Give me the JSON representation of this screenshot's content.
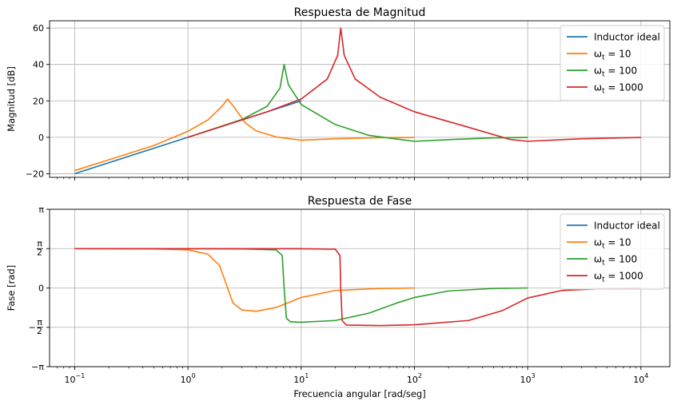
{
  "chart_data": [
    {
      "type": "line",
      "title": "Respuesta de Magnitud",
      "xlabel": "",
      "ylabel": "Magnitud [dB]",
      "xscale": "log",
      "xlim": [
        0.06,
        18000
      ],
      "ylim": [
        -22,
        64
      ],
      "x_ticks": [
        0.1,
        1,
        10,
        100,
        1000,
        10000
      ],
      "y_ticks": [
        -20,
        0,
        20,
        40,
        60
      ],
      "y_tick_labels": [
        "−20",
        "0",
        "20",
        "40",
        "60"
      ],
      "grid": true,
      "legend": "top-right",
      "series": [
        {
          "name": "Inductor ideal",
          "color": "#1f77b4",
          "points": [
            [
              0.1,
              -20
            ],
            [
              1,
              0
            ],
            [
              10,
              20
            ]
          ]
        },
        {
          "name": "ω_t = 10",
          "color": "#ff7f0e",
          "points": [
            [
              0.1,
              -18.3
            ],
            [
              0.5,
              -4.5
            ],
            [
              1,
              3.3
            ],
            [
              1.5,
              9.5
            ],
            [
              2,
              17
            ],
            [
              2.24,
              21
            ],
            [
              2.6,
              16
            ],
            [
              3.2,
              8
            ],
            [
              4,
              3.5
            ],
            [
              6,
              0.2
            ],
            [
              10,
              -1.6
            ],
            [
              20,
              -0.8
            ],
            [
              50,
              -0.2
            ],
            [
              100,
              -0.1
            ]
          ]
        },
        {
          "name": "ω_t = 100",
          "color": "#2ca02c",
          "points": [
            [
              1,
              0
            ],
            [
              3,
              9.8
            ],
            [
              5,
              17
            ],
            [
              6.5,
              27
            ],
            [
              7.07,
              40
            ],
            [
              7.7,
              29
            ],
            [
              10,
              18
            ],
            [
              20,
              7
            ],
            [
              40,
              1
            ],
            [
              100,
              -2.2
            ],
            [
              200,
              -1.3
            ],
            [
              500,
              -0.3
            ],
            [
              1000,
              -0.1
            ]
          ]
        },
        {
          "name": "ω_t = 1000",
          "color": "#d62728",
          "points": [
            [
              1,
              0
            ],
            [
              5,
              14
            ],
            [
              10,
              21
            ],
            [
              17,
              32
            ],
            [
              21,
              45
            ],
            [
              22.36,
              60
            ],
            [
              24,
              45
            ],
            [
              30,
              32
            ],
            [
              50,
              22
            ],
            [
              100,
              14
            ],
            [
              300,
              5.5
            ],
            [
              700,
              -1.2
            ],
            [
              1000,
              -2.2
            ],
            [
              3000,
              -0.8
            ],
            [
              10000,
              -0.1
            ]
          ]
        }
      ]
    },
    {
      "type": "line",
      "title": "Respuesta de Fase",
      "xlabel": "Frecuencia angular [rad/seg]",
      "ylabel": "Fase [rad]",
      "xscale": "log",
      "xlim": [
        0.06,
        18000
      ],
      "ylim": [
        -3.1416,
        3.1416
      ],
      "x_ticks": [
        0.1,
        1,
        10,
        100,
        1000,
        10000
      ],
      "y_ticks": [
        -3.1416,
        -1.5708,
        0,
        1.5708,
        3.1416
      ],
      "y_tick_labels": [
        "−π",
        "−π/2",
        "0",
        "π/2",
        "π"
      ],
      "grid": true,
      "legend": "top-right",
      "series": [
        {
          "name": "Inductor ideal",
          "color": "#1f77b4",
          "points": [
            [
              0.1,
              1.5708
            ],
            [
              10,
              1.5708
            ]
          ]
        },
        {
          "name": "ω_t = 10",
          "color": "#ff7f0e",
          "points": [
            [
              0.1,
              1.57
            ],
            [
              0.5,
              1.56
            ],
            [
              1,
              1.52
            ],
            [
              1.5,
              1.35
            ],
            [
              1.9,
              0.9
            ],
            [
              2.24,
              0
            ],
            [
              2.5,
              -0.6
            ],
            [
              3,
              -0.88
            ],
            [
              4,
              -0.93
            ],
            [
              6,
              -0.78
            ],
            [
              10,
              -0.38
            ],
            [
              20,
              -0.1
            ],
            [
              50,
              -0.02
            ],
            [
              100,
              0
            ]
          ]
        },
        {
          "name": "ω_t = 100",
          "color": "#2ca02c",
          "points": [
            [
              0.1,
              1.5708
            ],
            [
              3,
              1.56
            ],
            [
              6,
              1.52
            ],
            [
              6.8,
              1.3
            ],
            [
              7.07,
              0
            ],
            [
              7.4,
              -1.2
            ],
            [
              8,
              -1.35
            ],
            [
              10,
              -1.37
            ],
            [
              20,
              -1.3
            ],
            [
              40,
              -1.0
            ],
            [
              70,
              -0.6
            ],
            [
              100,
              -0.38
            ],
            [
              200,
              -0.12
            ],
            [
              500,
              -0.02
            ],
            [
              1000,
              0
            ]
          ]
        },
        {
          "name": "ω_t = 1000",
          "color": "#d62728",
          "points": [
            [
              0.1,
              1.5708
            ],
            [
              10,
              1.566
            ],
            [
              20,
              1.55
            ],
            [
              22,
              1.3
            ],
            [
              22.36,
              0
            ],
            [
              23,
              -1.3
            ],
            [
              25,
              -1.48
            ],
            [
              50,
              -1.5
            ],
            [
              100,
              -1.47
            ],
            [
              300,
              -1.3
            ],
            [
              600,
              -0.9
            ],
            [
              1000,
              -0.4
            ],
            [
              2000,
              -0.1
            ],
            [
              5000,
              -0.02
            ],
            [
              10000,
              0
            ]
          ]
        }
      ]
    }
  ]
}
